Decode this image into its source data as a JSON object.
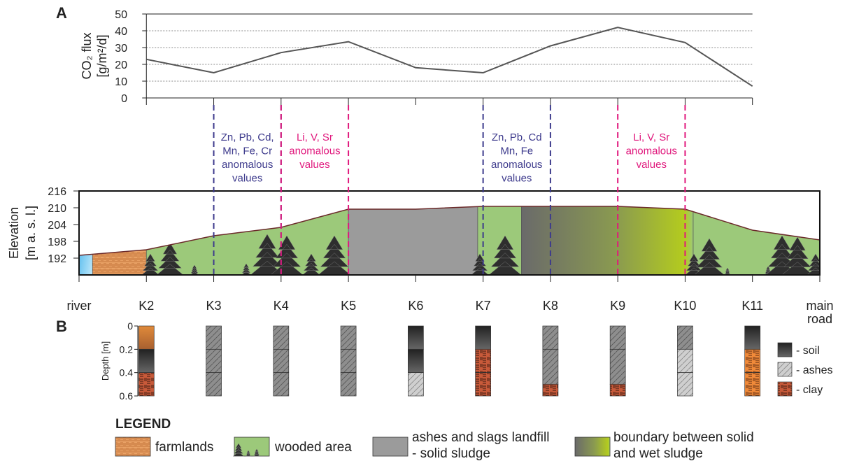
{
  "chart_data": [
    {
      "type": "line",
      "panel": "A",
      "ylabel": [
        "CO₂ flux",
        "[g/m²/d]"
      ],
      "categories": [
        "K2",
        "K3",
        "K4",
        "K5",
        "K6",
        "K7",
        "K8",
        "K9",
        "K10",
        "K11"
      ],
      "values": [
        23,
        15,
        27,
        33.5,
        18,
        15,
        31,
        42,
        33,
        7
      ],
      "color": "#555555",
      "ylim": [
        0,
        50
      ],
      "yticks": [
        0,
        10,
        20,
        30,
        40,
        50
      ],
      "grid": true,
      "annotations": [
        {
          "lines": [
            "Zn, Pb, Cd,",
            "Mn, Fe, Cr",
            "anomalous",
            "values"
          ],
          "color": "#3d3a8c",
          "from": "K3",
          "to": "K4"
        },
        {
          "lines": [
            "Li, V, Sr",
            "anomalous",
            "values"
          ],
          "color": "#e0197d",
          "from": "K4",
          "to": "K5"
        },
        {
          "lines": [
            "Zn, Pb, Cd",
            "Mn, Fe",
            "anomalous",
            "values"
          ],
          "color": "#3d3a8c",
          "from": "K7",
          "to": "K8"
        },
        {
          "lines": [
            "Li, V, Sr",
            "anomalous",
            "values"
          ],
          "color": "#e0197d",
          "from": "K9",
          "to": "K10"
        }
      ]
    },
    {
      "type": "profile",
      "ylabel": [
        "Elevation",
        "[m a. s. l.]"
      ],
      "categories": [
        "river",
        "K2",
        "K3",
        "K4",
        "K5",
        "K6",
        "K7",
        "K8",
        "K9",
        "K10",
        "K11",
        "main road"
      ],
      "values": [
        193,
        195,
        200,
        203,
        209.5,
        209.5,
        210.5,
        210.5,
        210.5,
        209.5,
        202,
        198.5
      ],
      "color": "#6b2a2a",
      "ylim": [
        186,
        216
      ],
      "yticks": [
        192,
        198,
        204,
        210,
        216
      ],
      "zones": [
        {
          "kind": "water",
          "from": 0,
          "to": 0.2
        },
        {
          "kind": "farmlands",
          "from": 0.2,
          "to": 1
        },
        {
          "kind": "wooded",
          "from": 1,
          "to": 4
        },
        {
          "kind": "landfill",
          "from": 4,
          "to": 5.92
        },
        {
          "kind": "wooded",
          "from": 5.92,
          "to": 6.57
        },
        {
          "kind": "boundary",
          "from": 6.57,
          "to": 9.12
        },
        {
          "kind": "wooded",
          "from": 9.12,
          "to": 11
        }
      ]
    },
    {
      "type": "columns",
      "panel": "B",
      "ylabel": "Depth [m]",
      "ylim": [
        0,
        0.6
      ],
      "yticks": [
        0,
        0.2,
        0.4,
        0.6
      ],
      "categories": [
        "K2",
        "K3",
        "K4",
        "K5",
        "K6",
        "K7",
        "K8",
        "K9",
        "K10",
        "K11"
      ],
      "columns": [
        [
          {
            "kind": "topsoil",
            "from": 0,
            "to": 0.2
          },
          {
            "kind": "soil",
            "from": 0.2,
            "to": 0.4
          },
          {
            "kind": "clay",
            "from": 0.4,
            "to": 0.6
          }
        ],
        [
          {
            "kind": "ashes",
            "from": 0,
            "to": 0.2
          },
          {
            "kind": "ashes",
            "from": 0.2,
            "to": 0.4
          },
          {
            "kind": "ashes",
            "from": 0.4,
            "to": 0.6
          }
        ],
        [
          {
            "kind": "ashes",
            "from": 0,
            "to": 0.2
          },
          {
            "kind": "ashes",
            "from": 0.2,
            "to": 0.4
          },
          {
            "kind": "ashes",
            "from": 0.4,
            "to": 0.6
          }
        ],
        [
          {
            "kind": "ashes",
            "from": 0,
            "to": 0.2
          },
          {
            "kind": "ashes",
            "from": 0.2,
            "to": 0.4
          },
          {
            "kind": "ashes",
            "from": 0.4,
            "to": 0.6
          }
        ],
        [
          {
            "kind": "soil",
            "from": 0,
            "to": 0.2
          },
          {
            "kind": "soil",
            "from": 0.2,
            "to": 0.4
          },
          {
            "kind": "lightashes",
            "from": 0.4,
            "to": 0.6
          }
        ],
        [
          {
            "kind": "soil",
            "from": 0,
            "to": 0.2
          },
          {
            "kind": "clay",
            "from": 0.2,
            "to": 0.4
          },
          {
            "kind": "clay",
            "from": 0.4,
            "to": 0.6
          }
        ],
        [
          {
            "kind": "ashes",
            "from": 0,
            "to": 0.2
          },
          {
            "kind": "ashes",
            "from": 0.2,
            "to": 0.5
          },
          {
            "kind": "clay",
            "from": 0.5,
            "to": 0.6
          }
        ],
        [
          {
            "kind": "ashes",
            "from": 0,
            "to": 0.2
          },
          {
            "kind": "ashes",
            "from": 0.2,
            "to": 0.5
          },
          {
            "kind": "clay",
            "from": 0.5,
            "to": 0.6
          }
        ],
        [
          {
            "kind": "ashes",
            "from": 0,
            "to": 0.2
          },
          {
            "kind": "lightashes",
            "from": 0.2,
            "to": 0.4
          },
          {
            "kind": "lightashes",
            "from": 0.4,
            "to": 0.6
          }
        ],
        [
          {
            "kind": "soil",
            "from": 0,
            "to": 0.2
          },
          {
            "kind": "orangeclay",
            "from": 0.2,
            "to": 0.4
          },
          {
            "kind": "orangeclay",
            "from": 0.4,
            "to": 0.6
          }
        ]
      ],
      "legend": [
        {
          "kind": "soil",
          "label": "- soil"
        },
        {
          "kind": "lightashes",
          "label": "- ashes"
        },
        {
          "kind": "clay",
          "label": "- clay"
        }
      ]
    }
  ],
  "legend": {
    "title": "LEGEND",
    "items": [
      {
        "kind": "farmlands",
        "lines": [
          "farmlands"
        ]
      },
      {
        "kind": "wooded",
        "lines": [
          "wooded area"
        ]
      },
      {
        "kind": "landfill",
        "lines": [
          "ashes and slags landfill",
          "- solid sludge"
        ]
      },
      {
        "kind": "boundary",
        "lines": [
          "boundary between solid",
          "and wet sludge"
        ]
      }
    ]
  }
}
